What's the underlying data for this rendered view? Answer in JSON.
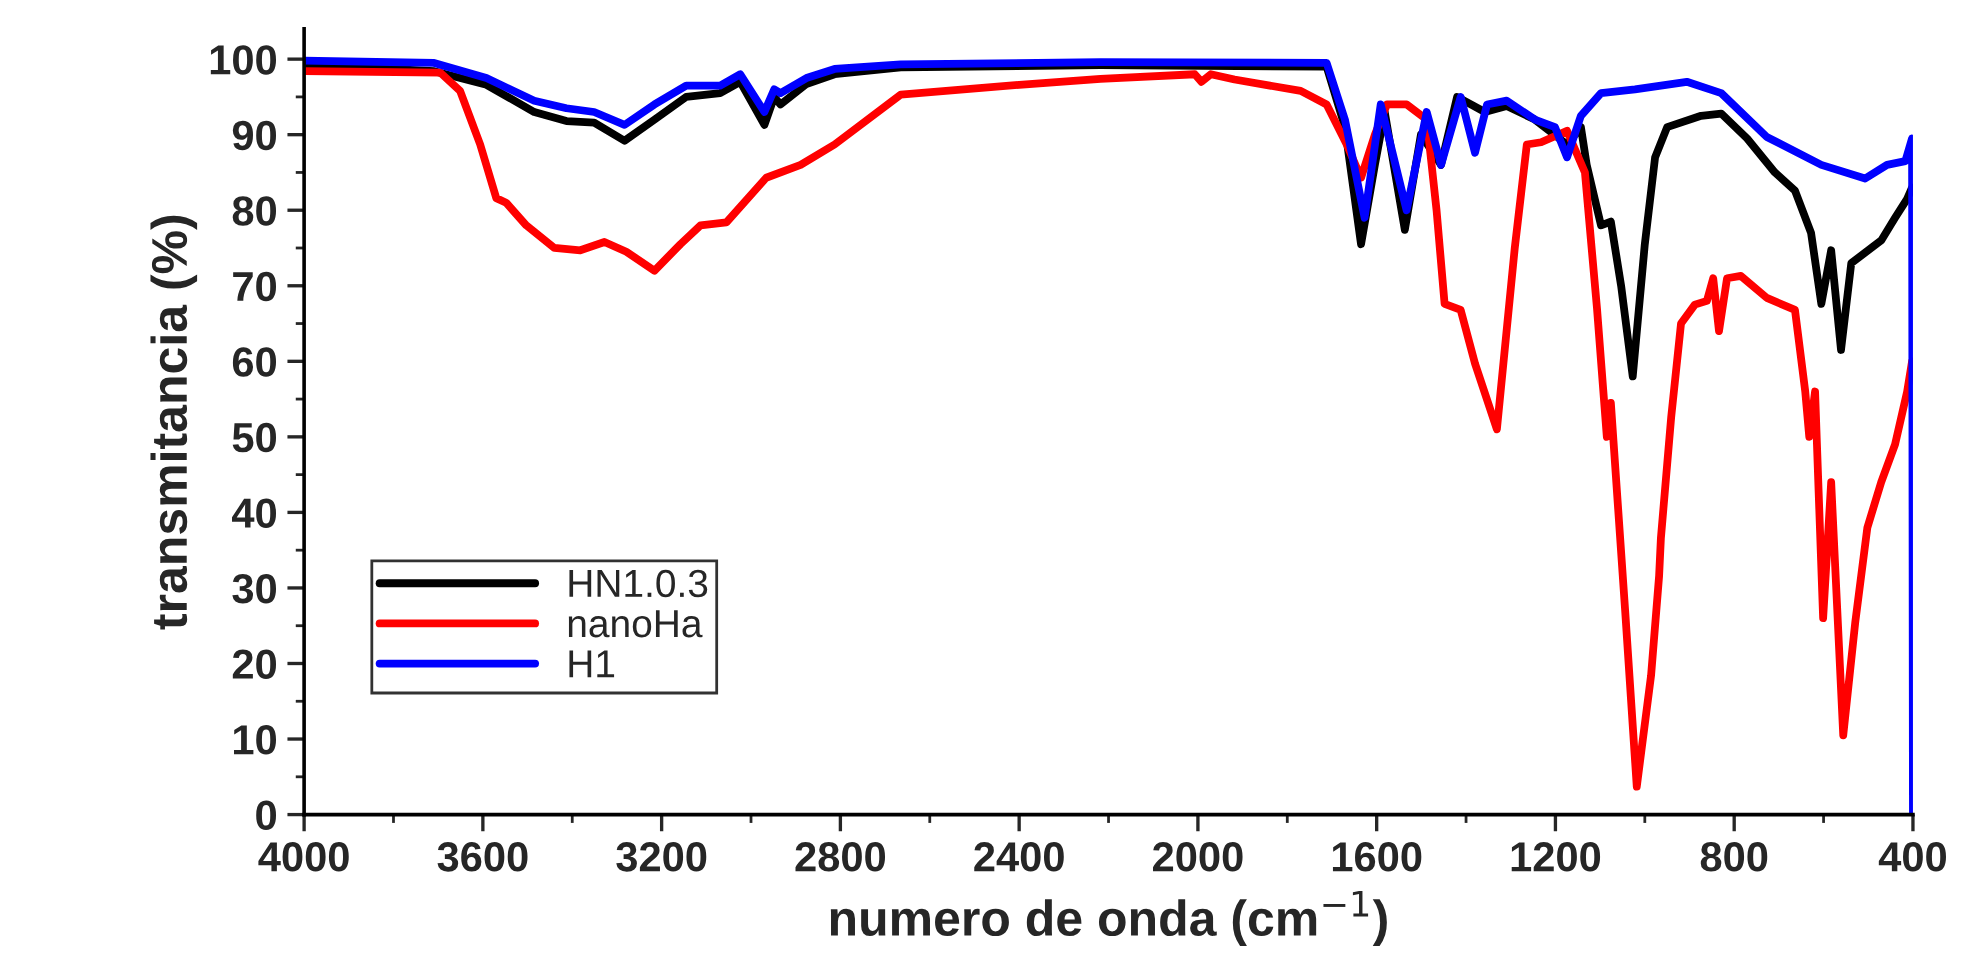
{
  "chart_data": {
    "type": "line",
    "xlabel": "numero de onda (cm$^{−1}$)",
    "ylabel": "transmitancia (%)",
    "xlim": [
      4000,
      400
    ],
    "ylim": [
      0,
      104
    ],
    "xticks": [
      4000,
      3600,
      3200,
      2800,
      2400,
      2000,
      1600,
      1200,
      800,
      400
    ],
    "yticks": [
      0,
      10,
      20,
      30,
      40,
      50,
      60,
      70,
      80,
      90,
      100
    ],
    "grid": false,
    "legend": "bottom left",
    "marker": "none",
    "line_style": "solid",
    "series": [
      {
        "name": "HN1.0.3",
        "color": "#000000",
        "x": [
          4000,
          3709,
          3592,
          3485,
          3413,
          3351,
          3283,
          3216,
          3145,
          3069,
          3024,
          2970,
          2948,
          2934,
          2876,
          2813,
          2665,
          2218,
          1712,
          1671,
          1635,
          1604,
          1582,
          1537,
          1501,
          1456,
          1420,
          1380,
          1358,
          1309,
          1246,
          1174,
          1143,
          1130,
          1098,
          1076,
          1053,
          1027,
          1000,
          977,
          950,
          874,
          829,
          771,
          709,
          664,
          628,
          605,
          583,
          561,
          538,
          471,
          440,
          413,
          402
        ],
        "values": [
          99.3,
          98.4,
          96.6,
          93,
          91.8,
          91.6,
          89.2,
          92,
          95,
          95.5,
          97,
          91.3,
          95,
          94,
          96.7,
          98,
          98.9,
          99.2,
          99,
          91,
          75.5,
          86,
          93,
          77.4,
          90,
          86,
          95,
          null,
          93,
          93.8,
          92,
          88.7,
          91,
          86,
          78,
          78.5,
          70,
          58,
          75.5,
          87,
          91,
          92.5,
          92.8,
          89.5,
          85,
          82.6,
          77,
          67.6,
          74.7,
          61.5,
          73,
          76,
          79,
          81.5,
          83
        ]
      },
      {
        "name": "nanoHa",
        "color": "#ff0000",
        "x": [
          4000,
          3695,
          3651,
          3606,
          3570,
          3548,
          3503,
          3440,
          3382,
          3328,
          3279,
          3216,
          3158,
          3113,
          3055,
          2966,
          2889,
          2813,
          2665,
          2400,
          2218,
          2007,
          1992,
          1971,
          1918,
          1770,
          1712,
          1667,
          1635,
          1604,
          1577,
          1533,
          1488,
          1466,
          1448,
          1412,
          1380,
          1331,
          1291,
          1264,
          1232,
          1174,
          1134,
          1107,
          1085,
          1076,
          1044,
          1018,
          986,
          968,
          964,
          941,
          919,
          888,
          861,
          847,
          834,
          816,
          785,
          727,
          664,
          641,
          632,
          619,
          601,
          583,
          556,
          529,
          502,
          471,
          440,
          413,
          402
        ],
        "values": [
          98.4,
          98.2,
          95.8,
          88.7,
          81.6,
          81,
          78,
          75,
          74.7,
          75.8,
          74.5,
          72,
          75.5,
          78,
          78.4,
          84.3,
          86,
          88.7,
          95.3,
          96.6,
          97.4,
          98,
          97,
          98,
          97.3,
          95.8,
          94,
          88.7,
          84.3,
          90,
          94,
          94,
          92,
          80,
          67.6,
          66.8,
          59.7,
          51,
          75,
          88.7,
          89,
          90.5,
          85,
          67,
          50,
          54.5,
          27,
          3.7,
          18.4,
          31.6,
          36.6,
          52.6,
          65,
          67.5,
          68,
          71,
          64,
          71,
          71.3,
          68.4,
          66.8,
          56,
          50,
          56,
          26,
          44,
          10.5,
          25.5,
          38,
          44,
          49,
          56,
          60
        ]
      },
      {
        "name": "H1",
        "color": "#0000ff",
        "x": [
          4000,
          3709,
          3592,
          3485,
          3413,
          3351,
          3283,
          3216,
          3145,
          3069,
          3024,
          2970,
          2948,
          2934,
          2876,
          2813,
          2665,
          2218,
          1712,
          1671,
          1627,
          1591,
          1533,
          1488,
          1456,
          1412,
          1380,
          1353,
          1309,
          1246,
          1201,
          1174,
          1143,
          1098,
          1022,
          906,
          829,
          727,
          605,
          507,
          458,
          417,
          402,
          400
        ],
        "values": [
          99.8,
          99.5,
          97.5,
          94.5,
          93.5,
          93,
          91.3,
          94,
          96.5,
          96.5,
          98,
          93,
          96,
          95.5,
          97.5,
          98.7,
          99.3,
          99.6,
          99.5,
          92,
          79,
          94,
          80,
          93,
          86,
          95,
          87.6,
          94,
          94.5,
          92,
          91,
          87,
          92.5,
          95.5,
          96,
          97,
          95.5,
          89.7,
          86,
          84.2,
          86,
          86.5,
          89.5,
          0
        ]
      }
    ]
  }
}
